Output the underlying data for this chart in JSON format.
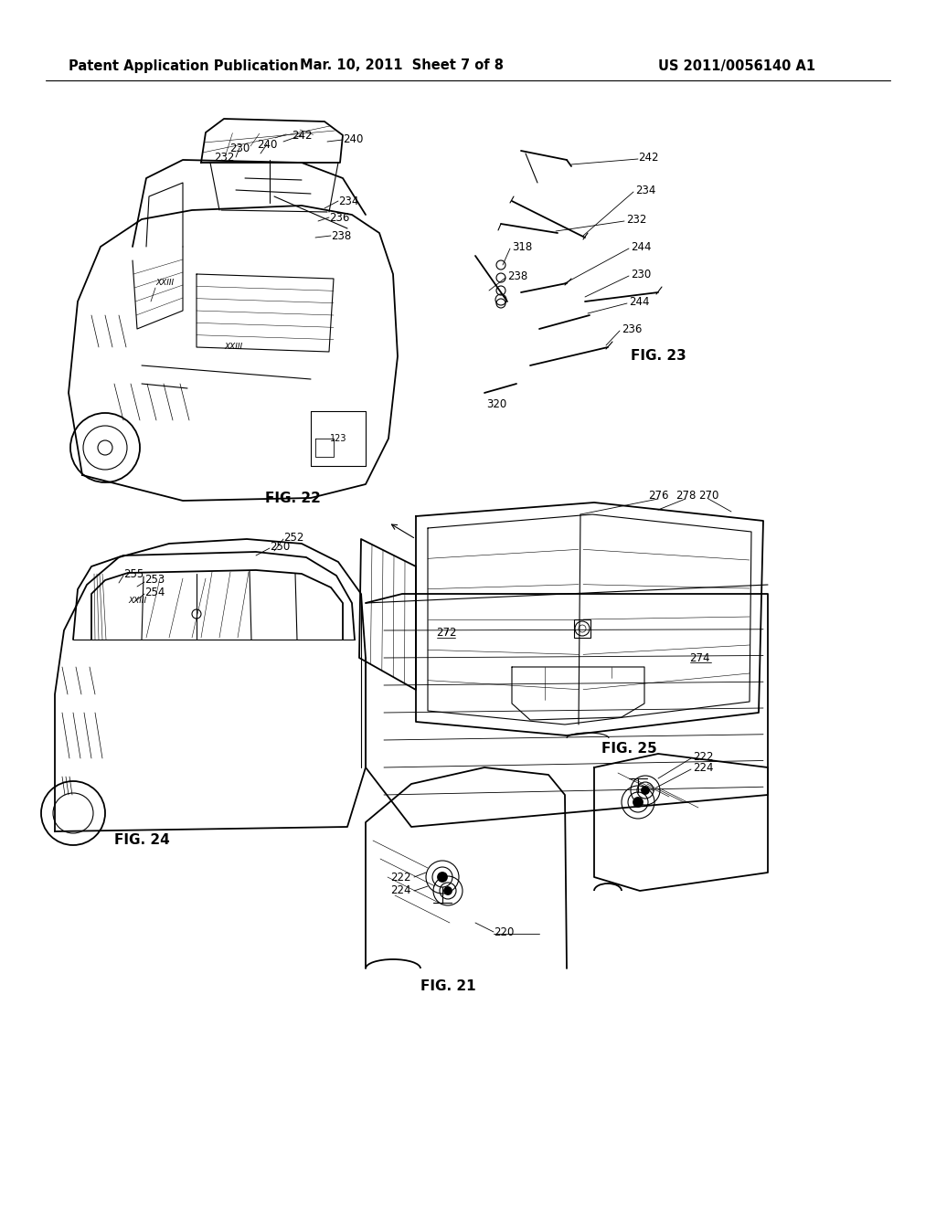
{
  "background_color": "#ffffff",
  "header_left": "Patent Application Publication",
  "header_center": "Mar. 10, 2011  Sheet 7 of 8",
  "header_right": "US 2011/0056140 A1",
  "line_color": "#000000",
  "page_width": 10.24,
  "page_height": 13.2,
  "dpi": 100,
  "header_fontsize": 10.5,
  "fig_label_fontsize": 11,
  "ref_fontsize": 8.5,
  "fig22_label": "FIG. 22",
  "fig23_label": "FIG. 23",
  "fig24_label": "FIG. 24",
  "fig25_label": "FIG. 25",
  "fig21_label": "FIG. 21"
}
